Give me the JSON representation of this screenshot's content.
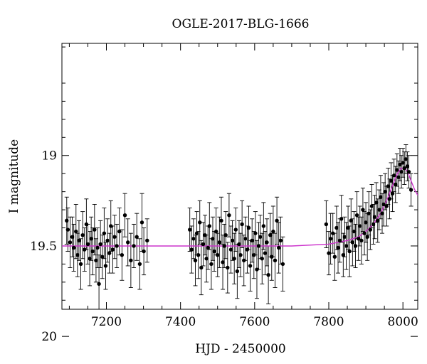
{
  "chart_data": {
    "type": "scatter",
    "title": "OGLE-2017-BLG-1666",
    "xlabel": "HJD - 2450000",
    "ylabel": "I magnitude",
    "xlim": [
      7080,
      8040
    ],
    "ylim": [
      19.85,
      18.38
    ],
    "y_inverted": true,
    "x_ticks": [
      7200,
      7400,
      7600,
      7800,
      8000
    ],
    "y_ticks": [
      19,
      19.5,
      20
    ],
    "x_tick_labels": [
      "7200",
      "7400",
      "7600",
      "7800",
      "8000"
    ],
    "y_tick_labels": [
      "19",
      "19.5",
      "20"
    ],
    "grid": false,
    "legend": "none",
    "colors": {
      "points": "#000000",
      "model": "#cc33cc"
    },
    "series": [
      {
        "type": "scatter_errorbars",
        "points": [
          [
            7093,
            19.36,
            0.13
          ],
          [
            7096,
            19.41,
            0.12
          ],
          [
            7102,
            19.48,
            0.14
          ],
          [
            7108,
            19.45,
            0.11
          ],
          [
            7112,
            19.51,
            0.13
          ],
          [
            7118,
            19.42,
            0.15
          ],
          [
            7122,
            19.55,
            0.12
          ],
          [
            7126,
            19.47,
            0.11
          ],
          [
            7131,
            19.6,
            0.14
          ],
          [
            7136,
            19.44,
            0.13
          ],
          [
            7141,
            19.52,
            0.12
          ],
          [
            7146,
            19.38,
            0.14
          ],
          [
            7150,
            19.49,
            0.11
          ],
          [
            7155,
            19.57,
            0.15
          ],
          [
            7159,
            19.46,
            0.12
          ],
          [
            7163,
            19.53,
            0.13
          ],
          [
            7168,
            19.41,
            0.14
          ],
          [
            7172,
            19.58,
            0.12
          ],
          [
            7176,
            19.51,
            0.11
          ],
          [
            7180,
            19.71,
            0.16
          ],
          [
            7184,
            19.49,
            0.13
          ],
          [
            7189,
            19.56,
            0.12
          ],
          [
            7194,
            19.43,
            0.14
          ],
          [
            7198,
            19.61,
            0.13
          ],
          [
            7203,
            19.47,
            0.12
          ],
          [
            7208,
            19.54,
            0.11
          ],
          [
            7212,
            19.39,
            0.14
          ],
          [
            7217,
            19.52,
            0.13
          ],
          [
            7222,
            19.45,
            0.12
          ],
          [
            7228,
            19.5,
            0.12
          ],
          [
            7235,
            19.42,
            0.13
          ],
          [
            7242,
            19.55,
            0.14
          ],
          [
            7250,
            19.33,
            0.12
          ],
          [
            7258,
            19.48,
            0.13
          ],
          [
            7266,
            19.58,
            0.15
          ],
          [
            7274,
            19.5,
            0.12
          ],
          [
            7282,
            19.45,
            0.13
          ],
          [
            7290,
            19.6,
            0.14
          ],
          [
            7296,
            19.37,
            0.16
          ],
          [
            7301,
            19.53,
            0.13
          ],
          [
            7310,
            19.47,
            0.12
          ],
          [
            7425,
            19.41,
            0.12
          ],
          [
            7430,
            19.52,
            0.13
          ],
          [
            7435,
            19.46,
            0.11
          ],
          [
            7440,
            19.58,
            0.14
          ],
          [
            7444,
            19.43,
            0.12
          ],
          [
            7448,
            19.55,
            0.13
          ],
          [
            7452,
            19.37,
            0.12
          ],
          [
            7456,
            19.62,
            0.15
          ],
          [
            7461,
            19.49,
            0.12
          ],
          [
            7466,
            19.44,
            0.11
          ],
          [
            7470,
            19.57,
            0.13
          ],
          [
            7474,
            19.51,
            0.12
          ],
          [
            7478,
            19.39,
            0.13
          ],
          [
            7483,
            19.6,
            0.14
          ],
          [
            7487,
            19.46,
            0.12
          ],
          [
            7491,
            19.53,
            0.11
          ],
          [
            7496,
            19.42,
            0.13
          ],
          [
            7500,
            19.55,
            0.12
          ],
          [
            7505,
            19.48,
            0.14
          ],
          [
            7510,
            19.36,
            0.13
          ],
          [
            7514,
            19.59,
            0.15
          ],
          [
            7518,
            19.5,
            0.12
          ],
          [
            7522,
            19.44,
            0.13
          ],
          [
            7527,
            19.62,
            0.14
          ],
          [
            7531,
            19.33,
            0.12
          ],
          [
            7536,
            19.52,
            0.13
          ],
          [
            7540,
            19.47,
            0.11
          ],
          [
            7545,
            19.57,
            0.14
          ],
          [
            7549,
            19.41,
            0.12
          ],
          [
            7553,
            19.64,
            0.15
          ],
          [
            7558,
            19.49,
            0.13
          ],
          [
            7562,
            19.55,
            0.12
          ],
          [
            7566,
            19.38,
            0.13
          ],
          [
            7571,
            19.58,
            0.14
          ],
          [
            7575,
            19.46,
            0.12
          ],
          [
            7580,
            19.52,
            0.13
          ],
          [
            7584,
            19.4,
            0.12
          ],
          [
            7588,
            19.61,
            0.14
          ],
          [
            7593,
            19.47,
            0.12
          ],
          [
            7598,
            19.55,
            0.13
          ],
          [
            7602,
            19.43,
            0.12
          ],
          [
            7606,
            19.63,
            0.16
          ],
          [
            7611,
            19.5,
            0.13
          ],
          [
            7615,
            19.45,
            0.12
          ],
          [
            7620,
            19.57,
            0.14
          ],
          [
            7624,
            19.39,
            0.13
          ],
          [
            7628,
            19.54,
            0.12
          ],
          [
            7633,
            19.48,
            0.13
          ],
          [
            7637,
            19.66,
            0.16
          ],
          [
            7642,
            19.44,
            0.12
          ],
          [
            7646,
            19.56,
            0.13
          ],
          [
            7650,
            19.42,
            0.14
          ],
          [
            7655,
            19.58,
            0.15
          ],
          [
            7660,
            19.36,
            0.13
          ],
          [
            7665,
            19.51,
            0.14
          ],
          [
            7670,
            19.47,
            0.13
          ],
          [
            7676,
            19.6,
            0.15
          ],
          [
            7793,
            19.38,
            0.13
          ],
          [
            7800,
            19.54,
            0.12
          ],
          [
            7805,
            19.46,
            0.14
          ],
          [
            7811,
            19.43,
            0.11
          ],
          [
            7816,
            19.56,
            0.13
          ],
          [
            7821,
            19.4,
            0.12
          ],
          [
            7825,
            19.51,
            0.14
          ],
          [
            7830,
            19.47,
            0.12
          ],
          [
            7834,
            19.35,
            0.13
          ],
          [
            7839,
            19.55,
            0.12
          ],
          [
            7843,
            19.45,
            0.11
          ],
          [
            7847,
            19.5,
            0.13
          ],
          [
            7852,
            19.4,
            0.12
          ],
          [
            7856,
            19.53,
            0.14
          ],
          [
            7860,
            19.36,
            0.12
          ],
          [
            7864,
            19.48,
            0.13
          ],
          [
            7868,
            19.42,
            0.11
          ],
          [
            7872,
            19.5,
            0.12
          ],
          [
            7876,
            19.33,
            0.13
          ],
          [
            7880,
            19.46,
            0.12
          ],
          [
            7884,
            19.39,
            0.11
          ],
          [
            7888,
            19.47,
            0.13
          ],
          [
            7892,
            19.3,
            0.12
          ],
          [
            7896,
            19.43,
            0.12
          ],
          [
            7900,
            19.37,
            0.11
          ],
          [
            7904,
            19.45,
            0.13
          ],
          [
            7908,
            19.32,
            0.12
          ],
          [
            7912,
            19.41,
            0.11
          ],
          [
            7916,
            19.28,
            0.12
          ],
          [
            7920,
            19.38,
            0.11
          ],
          [
            7924,
            19.34,
            0.12
          ],
          [
            7928,
            19.26,
            0.11
          ],
          [
            7932,
            19.36,
            0.12
          ],
          [
            7936,
            19.3,
            0.11
          ],
          [
            7940,
            19.23,
            0.12
          ],
          [
            7944,
            19.32,
            0.11
          ],
          [
            7948,
            19.27,
            0.12
          ],
          [
            7952,
            19.2,
            0.1
          ],
          [
            7956,
            19.28,
            0.11
          ],
          [
            7960,
            19.17,
            0.1
          ],
          [
            7964,
            19.24,
            0.11
          ],
          [
            7968,
            19.14,
            0.1
          ],
          [
            7972,
            19.21,
            0.1
          ],
          [
            7976,
            19.11,
            0.09
          ],
          [
            7980,
            19.16,
            0.1
          ],
          [
            7984,
            19.08,
            0.09
          ],
          [
            7988,
            19.12,
            0.09
          ],
          [
            7992,
            19.05,
            0.09
          ],
          [
            7996,
            19.09,
            0.09
          ],
          [
            8000,
            19.04,
            0.08
          ],
          [
            8004,
            19.07,
            0.09
          ],
          [
            8008,
            19.02,
            0.08
          ],
          [
            8012,
            19.06,
            0.08
          ],
          [
            8016,
            19.09,
            0.09
          ],
          [
            8022,
            19.19,
            0.09
          ]
        ]
      },
      {
        "type": "line",
        "points": [
          [
            7080,
            19.5
          ],
          [
            7300,
            19.5
          ],
          [
            7500,
            19.5
          ],
          [
            7700,
            19.5
          ],
          [
            7800,
            19.49
          ],
          [
            7850,
            19.47
          ],
          [
            7880,
            19.45
          ],
          [
            7900,
            19.42
          ],
          [
            7920,
            19.38
          ],
          [
            7940,
            19.32
          ],
          [
            7960,
            19.23
          ],
          [
            7975,
            19.15
          ],
          [
            7985,
            19.1
          ],
          [
            7995,
            19.07
          ],
          [
            8005,
            19.07
          ],
          [
            8013,
            19.09
          ],
          [
            8022,
            19.14
          ],
          [
            8032,
            19.19
          ],
          [
            8040,
            19.22
          ]
        ]
      }
    ]
  }
}
